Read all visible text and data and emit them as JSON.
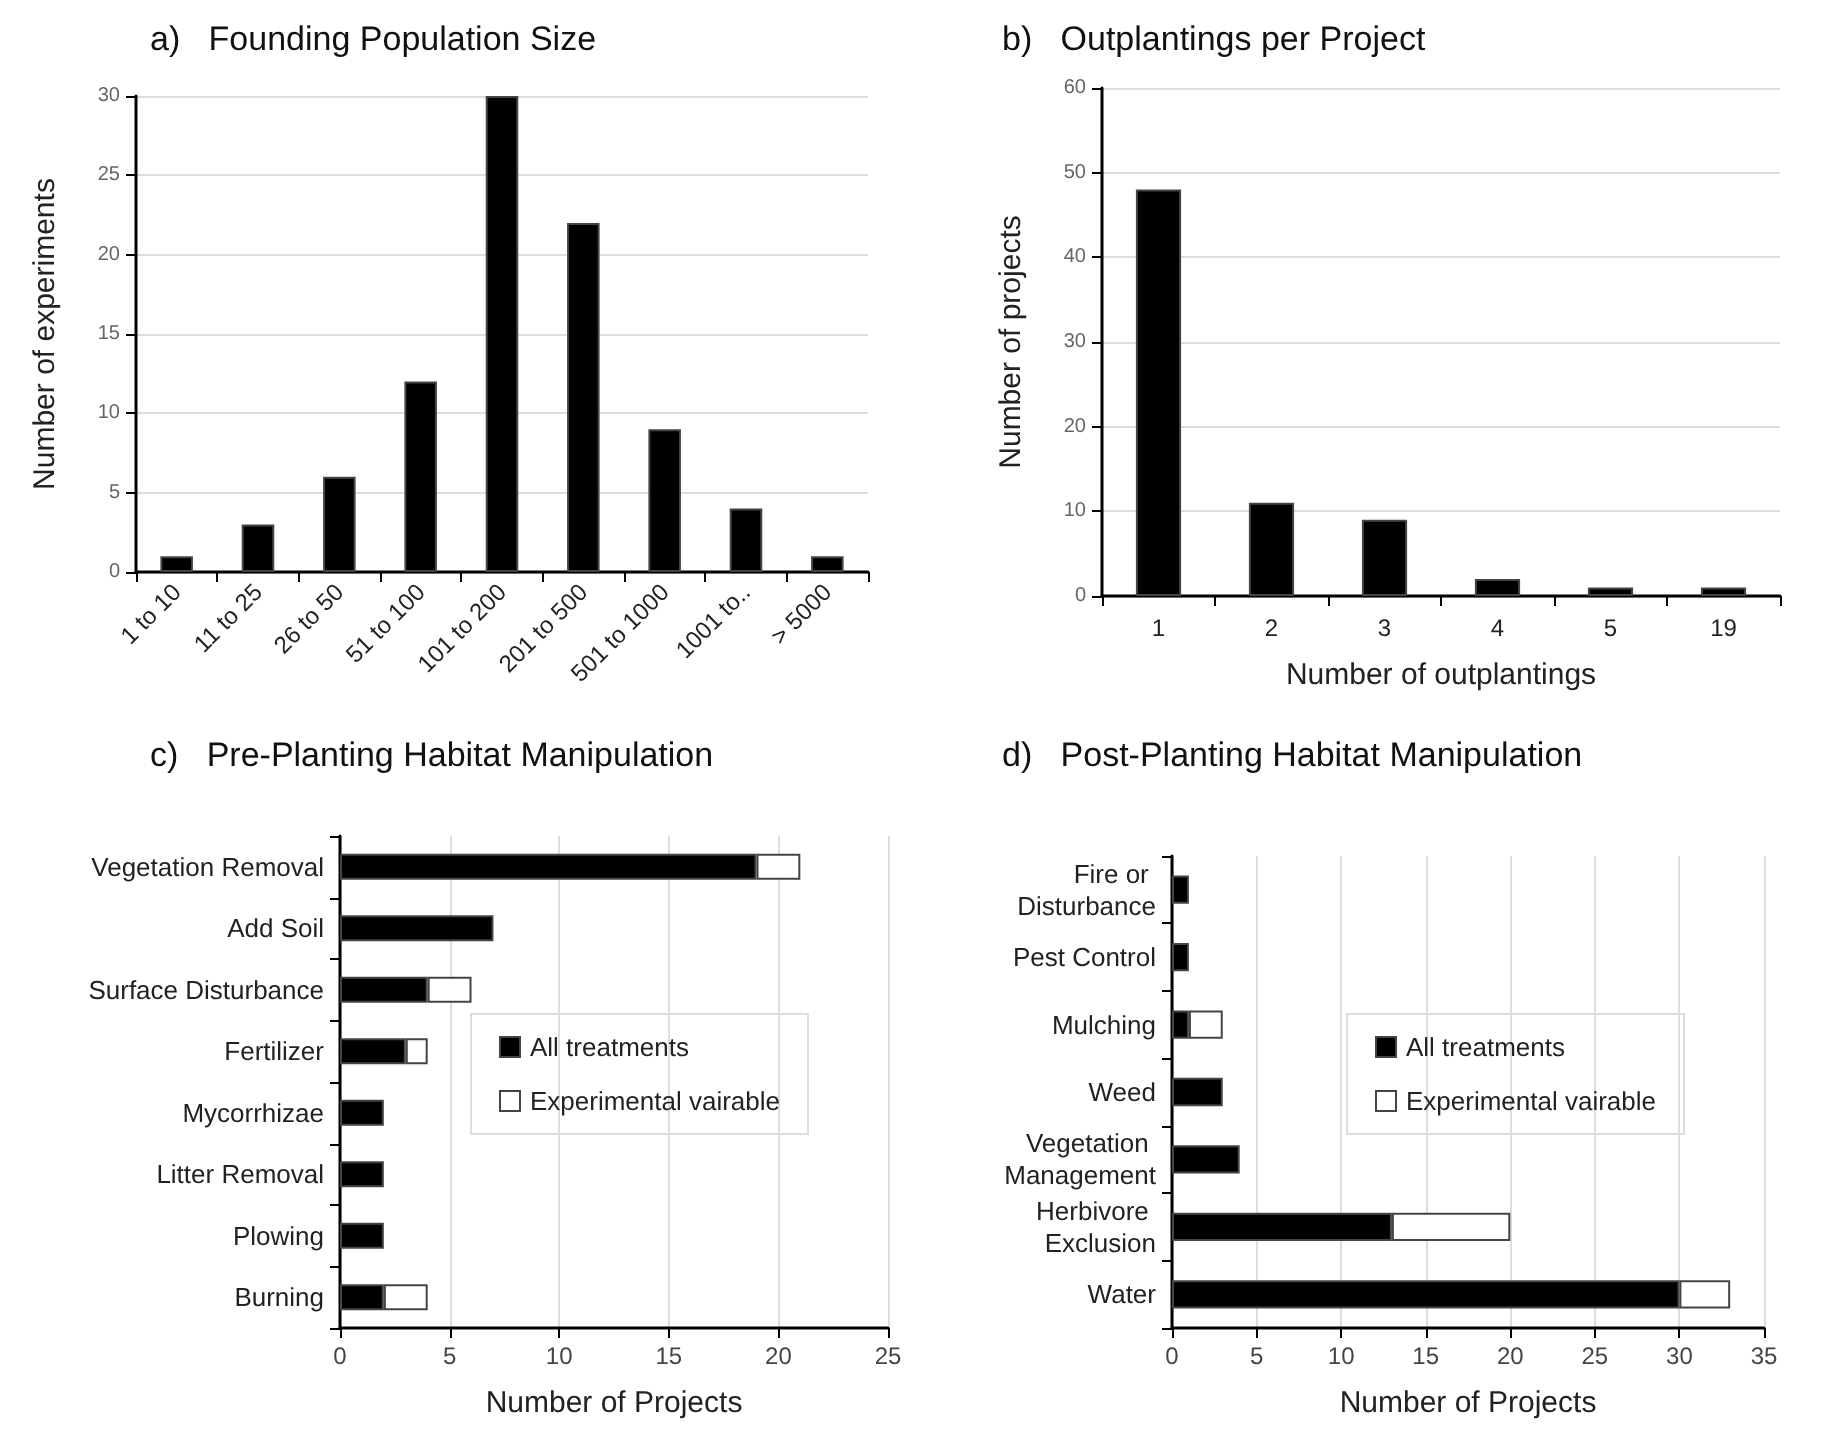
{
  "chart_data": [
    {
      "type": "bar",
      "title": "a)   Founding Population Size",
      "ylabel": "Number of experiments",
      "categories": [
        "1 to 10",
        "11 to 25",
        "26 to 50",
        "51 to 100",
        "101 to 200",
        "201 to 500",
        "501 to 1000",
        "1001 to..",
        "> 5000"
      ],
      "values": [
        1,
        3,
        6,
        12,
        30,
        22,
        9,
        4,
        1
      ],
      "color": "#000000",
      "ylim": [
        0,
        30
      ],
      "yticks": [
        0,
        5,
        10,
        15,
        20,
        25,
        30
      ],
      "grid": "y",
      "legend": false
    },
    {
      "type": "bar",
      "title": "b)   Outplantings per Project",
      "xlabel": "Number of outplantings",
      "ylabel": "Number of projects",
      "categories": [
        "1",
        "2",
        "3",
        "4",
        "5",
        "19"
      ],
      "values": [
        48,
        11,
        9,
        2,
        1,
        1
      ],
      "color": "#000000",
      "ylim": [
        0,
        60
      ],
      "yticks": [
        0,
        10,
        20,
        30,
        40,
        50,
        60
      ],
      "grid": "y",
      "legend": false
    },
    {
      "type": "bar",
      "title": "c)   Pre-Planting Habitat Manipulation",
      "xlabel": "Number of Projects",
      "orientation": "horizontal",
      "stacked": true,
      "categories": [
        "Vegetation Removal",
        "Add Soil",
        "Surface Disturbance",
        "Fertilizer",
        "Mycorrhizae",
        "Litter Removal",
        "Plowing",
        "Burning"
      ],
      "series": [
        {
          "name": "All treatments",
          "color": "#000000",
          "values": [
            19,
            7,
            4,
            3,
            2,
            2,
            2,
            2
          ]
        },
        {
          "name": "Experimental vairable",
          "color": "#ffffff",
          "values": [
            2,
            null,
            2,
            1,
            null,
            null,
            null,
            2
          ]
        }
      ],
      "xlim": [
        0,
        25
      ],
      "xticks": [
        0,
        5,
        10,
        15,
        20,
        25
      ],
      "grid": "x",
      "legend": "right"
    },
    {
      "type": "bar",
      "title": "d)   Post-Planting Habitat Manipulation",
      "xlabel": "Number of Projects",
      "orientation": "horizontal",
      "stacked": true,
      "categories": [
        "Fire or Disturbance",
        "Pest Control",
        "Mulching",
        "Weed",
        "Vegetation Management",
        "Herbivore Exclusion",
        "Water"
      ],
      "series": [
        {
          "name": "All treatments",
          "color": "#000000",
          "values": [
            1,
            1,
            1,
            3,
            4,
            13,
            30
          ]
        },
        {
          "name": "Experimental vairable",
          "color": "#ffffff",
          "values": [
            null,
            null,
            2,
            null,
            null,
            7,
            3
          ]
        }
      ],
      "xlim": [
        0,
        35
      ],
      "xticks": [
        0,
        5,
        10,
        15,
        20,
        25,
        30,
        35
      ],
      "grid": "x",
      "legend": "right"
    }
  ]
}
